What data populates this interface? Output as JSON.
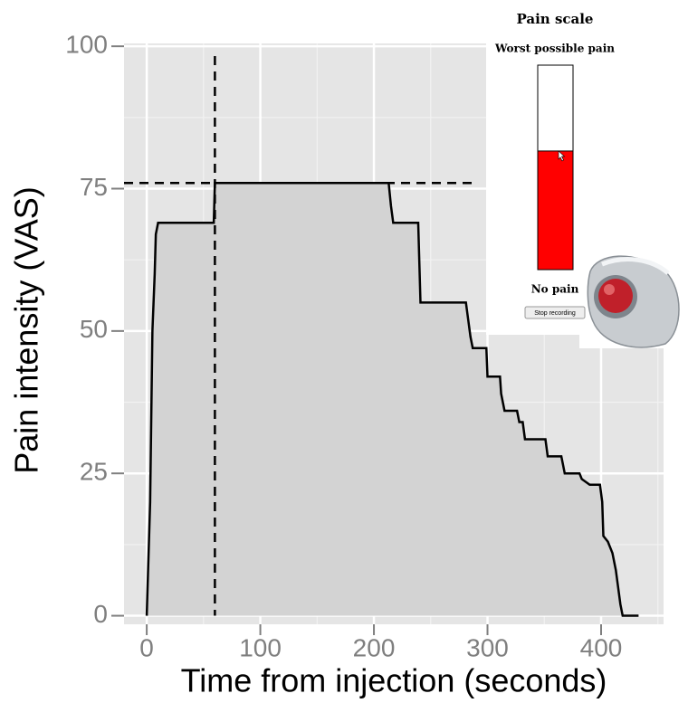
{
  "chart_data": {
    "type": "line",
    "x_label": "Time from injection (seconds)",
    "y_label": "Pain intensity (VAS)",
    "x": [
      0,
      3,
      5,
      7,
      8,
      10,
      59,
      60,
      213,
      215,
      217,
      239,
      241,
      281,
      283,
      285,
      287,
      299,
      300,
      311,
      312,
      315,
      326,
      328,
      331,
      333,
      351,
      353,
      365,
      368,
      381,
      383,
      390,
      399,
      401,
      402,
      406,
      410,
      413,
      417,
      419,
      433
    ],
    "series": [
      {
        "color": "#000000",
        "fill": "#d3d3d3",
        "values": [
          0,
          20,
          50,
          60,
          67,
          69,
          69,
          76,
          76,
          72,
          69,
          69,
          55,
          55,
          52,
          49,
          47,
          47,
          42,
          42,
          39,
          36,
          36,
          34,
          34,
          31,
          31,
          28,
          28,
          25,
          25,
          24,
          23,
          23,
          20,
          14,
          13,
          11,
          8,
          2,
          0,
          0
        ]
      }
    ],
    "vline": 60,
    "hline": 76,
    "xlim": [
      -20,
      455
    ],
    "ylim": [
      -1.5,
      100.5
    ],
    "xticks": [
      0,
      100,
      200,
      300,
      400
    ],
    "yticks": [
      0,
      25,
      50,
      75,
      100
    ],
    "grid": true
  },
  "inset": {
    "title": "Pain scale",
    "top_label": "Worst possible pain",
    "bottom_label": "No pain",
    "button": "Stop recording",
    "level": 58
  }
}
